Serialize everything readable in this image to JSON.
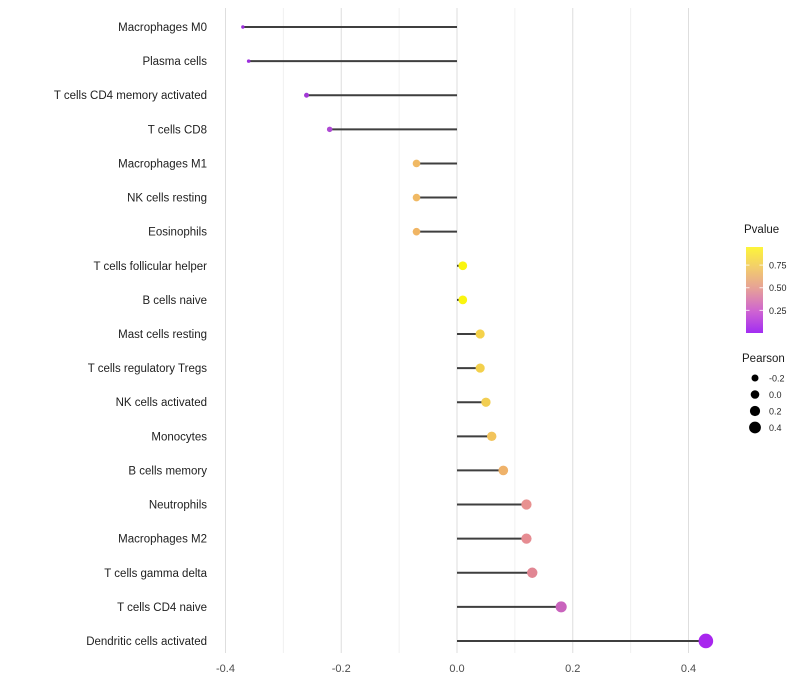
{
  "chart_data": {
    "type": "lollipop",
    "orientation": "horizontal",
    "title": "",
    "xlabel": "",
    "ylabel": "",
    "xlim": [
      -0.45,
      0.47
    ],
    "x_ticks": [
      -0.4,
      -0.2,
      0.0,
      0.2,
      0.4
    ],
    "x_tick_labels": [
      "-0.4",
      "-0.2",
      "0.0",
      "0.2",
      "0.4"
    ],
    "x_minor_ticks": [
      -0.3,
      -0.1,
      0.1,
      0.3
    ],
    "grid": "vertical-only",
    "stem_origin": 0.0,
    "points": [
      {
        "label": "Macrophages M0",
        "pearson": -0.37,
        "pvalue_est": 0.1,
        "color": "#9b2ddb"
      },
      {
        "label": "Plasma cells",
        "pearson": -0.36,
        "pvalue_est": 0.1,
        "color": "#9c2edd"
      },
      {
        "label": "T cells CD4 memory activated",
        "pearson": -0.26,
        "pvalue_est": 0.15,
        "color": "#a238d6"
      },
      {
        "label": "T cells CD8",
        "pearson": -0.22,
        "pvalue_est": 0.2,
        "color": "#ae49d4"
      },
      {
        "label": "Macrophages M1",
        "pearson": -0.07,
        "pvalue_est": 0.6,
        "color": "#f0b964"
      },
      {
        "label": "NK cells resting",
        "pearson": -0.07,
        "pvalue_est": 0.6,
        "color": "#f0b964"
      },
      {
        "label": "Eosinophils",
        "pearson": -0.07,
        "pvalue_est": 0.6,
        "color": "#f0b564"
      },
      {
        "label": "T cells follicular helper",
        "pearson": 0.01,
        "pvalue_est": 0.95,
        "color": "#faf50f"
      },
      {
        "label": "B cells naive",
        "pearson": 0.01,
        "pvalue_est": 0.95,
        "color": "#faf50f"
      },
      {
        "label": "Mast cells resting",
        "pearson": 0.04,
        "pvalue_est": 0.75,
        "color": "#f5d24a"
      },
      {
        "label": "T cells regulatory  Tregs",
        "pearson": 0.04,
        "pvalue_est": 0.75,
        "color": "#f3d04c"
      },
      {
        "label": "NK cells activated",
        "pearson": 0.05,
        "pvalue_est": 0.72,
        "color": "#f2ce52"
      },
      {
        "label": "Monocytes",
        "pearson": 0.06,
        "pvalue_est": 0.65,
        "color": "#f2c45c"
      },
      {
        "label": "B cells memory",
        "pearson": 0.08,
        "pvalue_est": 0.6,
        "color": "#efb26a"
      },
      {
        "label": "Neutrophils",
        "pearson": 0.12,
        "pvalue_est": 0.45,
        "color": "#e89190"
      },
      {
        "label": "Macrophages M2",
        "pearson": 0.12,
        "pvalue_est": 0.45,
        "color": "#e68c92"
      },
      {
        "label": "T cells gamma delta",
        "pearson": 0.13,
        "pvalue_est": 0.43,
        "color": "#e18693"
      },
      {
        "label": "T cells CD4 naive",
        "pearson": 0.18,
        "pvalue_est": 0.3,
        "color": "#c963bd"
      },
      {
        "label": "Dendritic cells activated",
        "pearson": 0.43,
        "pvalue_est": 0.05,
        "color": "#a826ee"
      }
    ],
    "legends": {
      "color": {
        "title": "Pvalue",
        "tick_labels": [
          "0.75",
          "0.50",
          "0.25"
        ],
        "tick_values": [
          0.75,
          0.5,
          0.25
        ],
        "bar_range": [
          0.0,
          0.95
        ],
        "gradient_top_to_bottom": [
          "#fdf53a",
          "#f2cb6e",
          "#e59d9b",
          "#ce63d2",
          "#a22df2"
        ]
      },
      "size": {
        "title": "Pearson",
        "tick_labels": [
          "-0.2",
          "0.0",
          "0.2",
          "0.4"
        ],
        "tick_values": [
          -0.2,
          0.0,
          0.2,
          0.4
        ],
        "dot_color": "#000000"
      }
    },
    "style": {
      "stem_color": "#3f3f3f",
      "grid_major_color": "#dedede",
      "grid_minor_color": "#f0f0f0",
      "background": "#ffffff"
    }
  }
}
